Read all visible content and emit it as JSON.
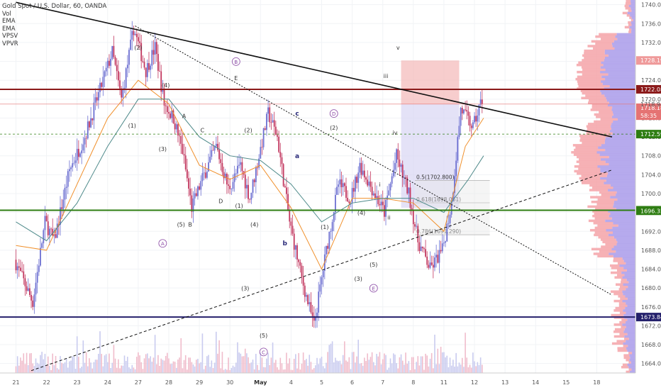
{
  "legend": {
    "title": "Gold Spot / U.S. Dollar, 60, OANDA",
    "indicators": [
      "Vol",
      "EMA",
      "EMA",
      "VPSV",
      "VPVR"
    ]
  },
  "colors": {
    "up": "#6c6fd1",
    "down": "#c2375f",
    "resistance": "#8b1a1a",
    "support_green": "#2e7d12",
    "support_navy": "#24206b",
    "trend": "#111111",
    "ema_fast": "#f0902c",
    "ema_slow": "#4e8a8a"
  },
  "chart_data": {
    "type": "candlestick",
    "symbol": "Gold Spot / U.S. Dollar",
    "interval": "60",
    "source": "OANDA",
    "x_ticks": [
      "21",
      "22",
      "23",
      "24",
      "27",
      "28",
      "29",
      "30",
      "May",
      "4",
      "5",
      "6",
      "7",
      "8",
      "11",
      "12",
      "13",
      "14",
      "15",
      "18"
    ],
    "y_ticks": [
      1740,
      1736,
      1732,
      1728,
      1724,
      1720,
      1716,
      1712,
      1708,
      1704,
      1700,
      1696,
      1692,
      1688,
      1684,
      1680,
      1676,
      1672,
      1668,
      1664
    ],
    "ylim": [
      1662,
      1741
    ],
    "price_path": [
      [
        0,
        1686
      ],
      [
        0.6,
        1677
      ],
      [
        1.0,
        1694
      ],
      [
        1.3,
        1690
      ],
      [
        1.8,
        1705
      ],
      [
        2.3,
        1712
      ],
      [
        2.8,
        1722
      ],
      [
        3.2,
        1730
      ],
      [
        3.5,
        1720
      ],
      [
        3.9,
        1735
      ],
      [
        4.3,
        1726
      ],
      [
        4.6,
        1731
      ],
      [
        4.9,
        1719
      ],
      [
        5.2,
        1716
      ],
      [
        5.5,
        1709
      ],
      [
        5.8,
        1697
      ],
      [
        6.2,
        1704
      ],
      [
        6.6,
        1710
      ],
      [
        7.0,
        1701
      ],
      [
        7.4,
        1706
      ],
      [
        7.7,
        1699
      ],
      [
        8.0,
        1708
      ],
      [
        8.3,
        1717
      ],
      [
        8.6,
        1712
      ],
      [
        9.0,
        1694
      ],
      [
        9.4,
        1682
      ],
      [
        9.8,
        1672
      ],
      [
        10.2,
        1688
      ],
      [
        10.6,
        1702
      ],
      [
        11.0,
        1699
      ],
      [
        11.3,
        1706
      ],
      [
        11.7,
        1701
      ],
      [
        12.1,
        1696
      ],
      [
        12.5,
        1708
      ],
      [
        12.9,
        1700
      ],
      [
        13.2,
        1690
      ],
      [
        13.6,
        1684
      ],
      [
        14.0,
        1688
      ],
      [
        14.3,
        1698
      ],
      [
        14.6,
        1718
      ],
      [
        15.0,
        1714
      ],
      [
        15.3,
        1720
      ]
    ],
    "ema_fast_path": [
      [
        0,
        1689
      ],
      [
        1.0,
        1688
      ],
      [
        2.0,
        1702
      ],
      [
        3.0,
        1716
      ],
      [
        4.0,
        1724
      ],
      [
        5.0,
        1719
      ],
      [
        6.0,
        1706
      ],
      [
        7.0,
        1703
      ],
      [
        8.0,
        1706
      ],
      [
        9.0,
        1697
      ],
      [
        10.0,
        1684
      ],
      [
        11.0,
        1699
      ],
      [
        12.0,
        1699
      ],
      [
        13.0,
        1698
      ],
      [
        14.0,
        1692
      ],
      [
        14.7,
        1710
      ],
      [
        15.3,
        1716
      ]
    ],
    "ema_slow_path": [
      [
        0,
        1694
      ],
      [
        1.0,
        1690
      ],
      [
        2.0,
        1698
      ],
      [
        3.0,
        1710
      ],
      [
        4.0,
        1720
      ],
      [
        5.0,
        1720
      ],
      [
        6.0,
        1712
      ],
      [
        7.0,
        1708
      ],
      [
        8.0,
        1707
      ],
      [
        9.0,
        1702
      ],
      [
        10.0,
        1694
      ],
      [
        11.0,
        1698
      ],
      [
        12.0,
        1699
      ],
      [
        13.0,
        1699
      ],
      [
        14.0,
        1696
      ],
      [
        14.8,
        1703
      ],
      [
        15.3,
        1708
      ]
    ],
    "horizontal_levels": [
      {
        "price": 1722.082,
        "label": "1722.082",
        "color": "resistance"
      },
      {
        "price": 1696.47,
        "label": "1696.470",
        "color": "support_green"
      },
      {
        "price": 1673.847,
        "label": "1673.847",
        "color": "support_navy"
      }
    ],
    "price_tags": [
      {
        "price": 1740.0,
        "label": "1740.000",
        "bg": "#ffffff",
        "fg": "#333333"
      },
      {
        "price": 1728.198,
        "label": "1728.198",
        "bg": "#ef9a9a",
        "fg": "#ffffff"
      },
      {
        "price": 1722.082,
        "label": "1722.082",
        "bg": "#8b1a1a",
        "fg": "#ffffff"
      },
      {
        "price": 1718.947,
        "label": "1718.947",
        "bg": "#ffffff",
        "fg": "#333333"
      },
      {
        "price": 1718.181,
        "label": "1718.181",
        "bg": "#e57373",
        "fg": "#ffffff"
      },
      {
        "price": 1716.5,
        "label": "58:35",
        "bg": "#e57373",
        "fg": "#ffffff"
      },
      {
        "price": 1712.597,
        "label": "1712.597",
        "bg": "#2e7d12",
        "fg": "#ffffff"
      },
      {
        "price": 1696.47,
        "label": "1696.470",
        "bg": "#2e7d12",
        "fg": "#ffffff"
      },
      {
        "price": 1696.353,
        "label": "1696.353",
        "bg": "#2e7d12",
        "fg": "#ffffff"
      },
      {
        "price": 1673.847,
        "label": "1673.847",
        "bg": "#24206b",
        "fg": "#ffffff"
      }
    ],
    "fib_levels": [
      {
        "price": 1702.8,
        "label": "0.5(1702.800)"
      },
      {
        "price": 1698.051,
        "label": "0.618(1698.051)"
      },
      {
        "price": 1691.29,
        "label": "0.786(1691.290)"
      }
    ],
    "trend_lines": [
      {
        "from": [
          0,
          1740.5
        ],
        "to": [
          19.5,
          1712.0
        ],
        "style": "solid",
        "color": "trend"
      },
      {
        "from": [
          3.9,
          1735.5
        ],
        "to": [
          19.5,
          1678.5
        ],
        "style": "dotted",
        "color": "trend"
      },
      {
        "from": [
          0.5,
          1662.5
        ],
        "to": [
          19.5,
          1705.0
        ],
        "style": "dashed",
        "color": "trend"
      }
    ],
    "wave_labels": [
      {
        "text": "(2)",
        "x": 4.0,
        "y": 1730.5
      },
      {
        "text": "(4)",
        "x": 4.9,
        "y": 1722.5
      },
      {
        "text": "(1)",
        "x": 3.8,
        "y": 1714.0
      },
      {
        "text": "(3)",
        "x": 4.8,
        "y": 1709.0
      },
      {
        "text": "(5)",
        "x": 5.4,
        "y": 1693.0
      },
      {
        "text": "A",
        "x": 5.5,
        "y": 1716.0
      },
      {
        "text": "B",
        "x": 5.7,
        "y": 1693.0
      },
      {
        "text": "C",
        "x": 6.1,
        "y": 1713.0
      },
      {
        "text": "D",
        "x": 6.7,
        "y": 1698.0
      },
      {
        "text": "E",
        "x": 7.2,
        "y": 1724.0
      },
      {
        "text": "(2)",
        "x": 7.6,
        "y": 1713.0
      },
      {
        "text": "(1)",
        "x": 7.3,
        "y": 1697.0
      },
      {
        "text": "(4)",
        "x": 7.8,
        "y": 1693.0
      },
      {
        "text": "(3)",
        "x": 7.5,
        "y": 1679.5
      },
      {
        "text": "(5)",
        "x": 8.1,
        "y": 1669.5
      },
      {
        "text": "(2)",
        "x": 10.4,
        "y": 1713.5
      },
      {
        "text": "(1)",
        "x": 10.1,
        "y": 1692.5
      },
      {
        "text": "(4)",
        "x": 11.3,
        "y": 1695.5
      },
      {
        "text": "(3)",
        "x": 11.2,
        "y": 1681.5
      },
      {
        "text": "(5)",
        "x": 11.7,
        "y": 1684.5
      },
      {
        "text": "i",
        "x": 11.9,
        "y": 1701.5
      },
      {
        "text": "ii",
        "x": 12.2,
        "y": 1694.5
      },
      {
        "text": "iii",
        "x": 12.1,
        "y": 1724.5
      },
      {
        "text": "iv",
        "x": 12.4,
        "y": 1712.5
      },
      {
        "text": "v",
        "x": 12.5,
        "y": 1730.5
      }
    ],
    "big_wave_labels": [
      {
        "text": "a",
        "x": 9.2,
        "y": 1707.5
      },
      {
        "text": "b",
        "x": 8.8,
        "y": 1689.0
      },
      {
        "text": "c",
        "x": 9.2,
        "y": 1716.5
      }
    ],
    "circled_labels": [
      {
        "text": "A",
        "x": 4.8,
        "y": 1689.0
      },
      {
        "text": "B",
        "x": 7.2,
        "y": 1727.5
      },
      {
        "text": "C",
        "x": 8.1,
        "y": 1666.0
      },
      {
        "text": "D",
        "x": 10.4,
        "y": 1716.5
      },
      {
        "text": "E",
        "x": 11.7,
        "y": 1679.5
      }
    ],
    "position_box": {
      "x0": 12.6,
      "x1": 14.5,
      "entry": 1719.0,
      "target": 1697.0,
      "stop": 1728.2
    }
  }
}
